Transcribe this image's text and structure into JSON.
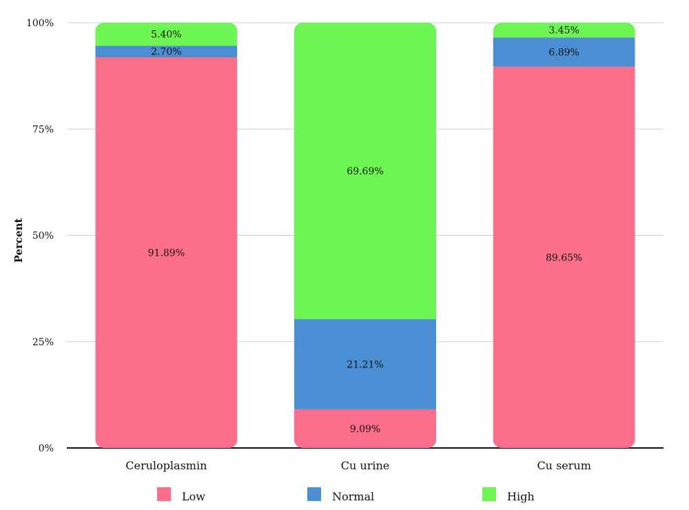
{
  "chart_data": {
    "type": "bar",
    "stacked": true,
    "normalized": true,
    "categories": [
      "Ceruloplasmin",
      "Cu urine",
      "Cu serum"
    ],
    "series": [
      {
        "name": "Low",
        "color": "#fc6f8a",
        "values": [
          91.89,
          9.09,
          89.65
        ],
        "labels": [
          "91.89%",
          "9.09%",
          "89.65%"
        ]
      },
      {
        "name": "Normal",
        "color": "#4a8fd4",
        "values": [
          2.7,
          21.21,
          6.89
        ],
        "labels": [
          "2.70%",
          "21.21%",
          "6.89%"
        ]
      },
      {
        "name": "High",
        "color": "#6df553",
        "values": [
          5.4,
          69.69,
          3.45
        ],
        "labels": [
          "5.40%",
          "69.69%",
          "3.45%"
        ]
      }
    ],
    "ylabel": "Percent",
    "xlabel": "",
    "ylim": [
      0,
      100
    ],
    "yticks": [
      0,
      25,
      50,
      75,
      100
    ],
    "ytick_labels": [
      "0%",
      "25%",
      "50%",
      "75%",
      "100%"
    ],
    "grid": true,
    "legend_position": "bottom"
  }
}
